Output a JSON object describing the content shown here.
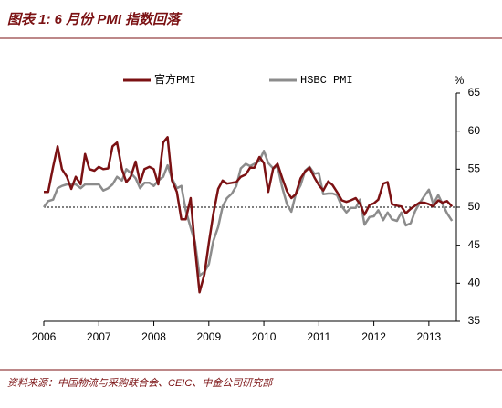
{
  "chart_data": {
    "type": "line",
    "title": "图表 1: 6 月份 PMI 指数回落",
    "source": "资料来源：中国物流与采购联合会、CEIC、中金公司研究部",
    "y_unit": "%",
    "x": [
      2006,
      2006.08,
      2006.17,
      2006.25,
      2006.33,
      2006.42,
      2006.5,
      2006.58,
      2006.67,
      2006.75,
      2006.83,
      2006.92,
      2007,
      2007.08,
      2007.17,
      2007.25,
      2007.33,
      2007.42,
      2007.5,
      2007.58,
      2007.67,
      2007.75,
      2007.83,
      2007.92,
      2008,
      2008.08,
      2008.17,
      2008.25,
      2008.33,
      2008.42,
      2008.5,
      2008.58,
      2008.67,
      2008.75,
      2008.83,
      2008.92,
      2009,
      2009.08,
      2009.17,
      2009.25,
      2009.33,
      2009.42,
      2009.5,
      2009.58,
      2009.67,
      2009.75,
      2009.83,
      2009.92,
      2010,
      2010.08,
      2010.17,
      2010.25,
      2010.33,
      2010.42,
      2010.5,
      2010.58,
      2010.67,
      2010.75,
      2010.83,
      2010.92,
      2011,
      2011.08,
      2011.17,
      2011.25,
      2011.33,
      2011.42,
      2011.5,
      2011.58,
      2011.67,
      2011.75,
      2011.83,
      2011.92,
      2012,
      2012.08,
      2012.17,
      2012.25,
      2012.33,
      2012.42,
      2012.5,
      2012.58,
      2012.67,
      2012.75,
      2012.83,
      2012.92,
      2013,
      2013.08,
      2013.17,
      2013.25,
      2013.33,
      2013.42
    ],
    "series": [
      {
        "name": "官方PMI",
        "color": "#7b1113",
        "values": [
          52.0,
          52.0,
          55.3,
          58.0,
          55.0,
          54.0,
          52.4,
          54.0,
          53.0,
          57.0,
          55.0,
          54.8,
          55.3,
          55.0,
          55.1,
          58.0,
          58.5,
          55.0,
          53.3,
          54.0,
          56.0,
          53.2,
          55.0,
          55.3,
          55.0,
          53.0,
          58.5,
          59.2,
          53.5,
          52.0,
          48.4,
          48.4,
          51.2,
          44.6,
          38.8,
          41.2,
          45.3,
          49.0,
          52.4,
          53.5,
          53.1,
          53.2,
          53.3,
          54.0,
          54.3,
          55.2,
          55.2,
          56.6,
          55.8,
          52.0,
          55.1,
          55.7,
          53.9,
          52.1,
          51.2,
          51.7,
          53.8,
          54.7,
          55.2,
          53.9,
          52.9,
          52.2,
          53.4,
          52.9,
          52.0,
          50.9,
          50.7,
          50.9,
          51.2,
          50.4,
          49.0,
          50.3,
          50.5,
          51.0,
          53.1,
          53.3,
          50.4,
          50.2,
          50.1,
          49.2,
          49.8,
          50.2,
          50.6,
          50.6,
          50.4,
          50.1,
          50.9,
          50.6,
          50.8,
          50.1
        ]
      },
      {
        "name": "HSBC PMI",
        "color": "#8c8c8c",
        "values": [
          50.0,
          50.8,
          51.0,
          52.5,
          52.8,
          53.0,
          53.0,
          53.0,
          52.5,
          53.0,
          53.0,
          53.0,
          53.0,
          52.2,
          52.5,
          53.0,
          54.0,
          53.5,
          55.0,
          54.5,
          53.8,
          52.5,
          53.2,
          53.2,
          52.8,
          53.5,
          54.0,
          55.5,
          53.8,
          52.5,
          52.8,
          49.6,
          47.3,
          45.4,
          41.0,
          41.5,
          42.5,
          45.5,
          47.4,
          50.1,
          51.2,
          51.8,
          52.8,
          55.1,
          55.7,
          55.4,
          55.7,
          56.1,
          57.4,
          55.8,
          55.1,
          55.4,
          52.7,
          50.4,
          49.4,
          51.7,
          52.9,
          54.8,
          55.3,
          54.4,
          54.5,
          51.7,
          51.8,
          51.8,
          51.6,
          50.1,
          49.3,
          49.9,
          49.9,
          51.0,
          47.7,
          48.7,
          48.8,
          49.6,
          48.3,
          49.3,
          48.4,
          48.2,
          49.3,
          47.6,
          47.9,
          49.5,
          50.5,
          51.5,
          52.3,
          50.4,
          51.6,
          50.4,
          49.2,
          48.2
        ]
      }
    ],
    "reference_line": 50,
    "xlim": [
      2006,
      2013.5
    ],
    "xticks": [
      2006,
      2007,
      2008,
      2009,
      2010,
      2011,
      2012,
      2013
    ],
    "ylim": [
      35,
      65
    ],
    "yticks": [
      35,
      40,
      45,
      50,
      55,
      60,
      65
    ],
    "y_axis_side": "right"
  }
}
